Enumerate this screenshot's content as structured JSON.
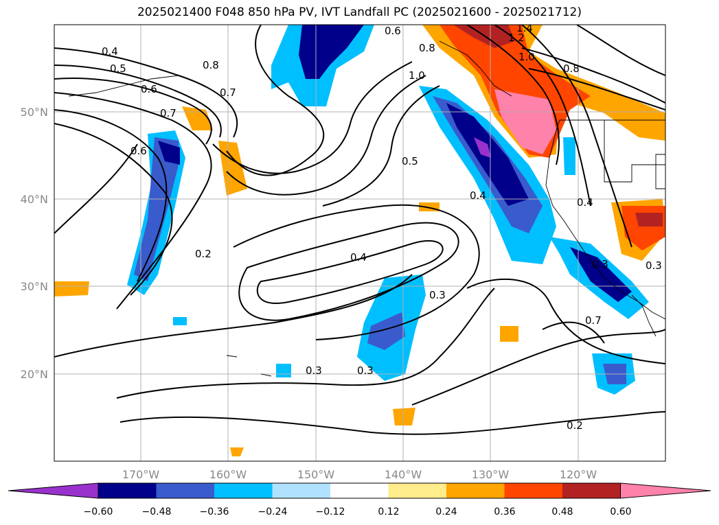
{
  "title": "2025021400 F048 850 hPa PV, IVT Landfall PC (2025021600 - 2025021712)",
  "lat_labels": [
    "50°N",
    "40°N",
    "30°N",
    "20°N"
  ],
  "lon_labels": [
    "170°W",
    "160°W",
    "150°W",
    "140°W",
    "130°W",
    "120°W"
  ],
  "contour_labels": [
    "0.4",
    "0.5",
    "0.6",
    "0.7",
    "0.8",
    "0.8",
    "1.0",
    "1.0",
    "1.2",
    "1.4",
    "0.6",
    "0.8",
    "0.7",
    "0.6",
    "0.5",
    "0.4",
    "0.2",
    "0.4",
    "0.3",
    "0.3",
    "0.3",
    "0.2",
    "0.4",
    "0.3",
    "0.7",
    "0.3"
  ],
  "colorbar": {
    "ticks": [
      "−0.60",
      "−0.48",
      "−0.36",
      "−0.24",
      "−0.12",
      "0.12",
      "0.24",
      "0.36",
      "0.48",
      "0.60"
    ],
    "colors": [
      "#9932cc",
      "#00008b",
      "#3a5bcc",
      "#00bfff",
      "#b0e2ff",
      "#ffffff",
      "#ffec8b",
      "#ffa500",
      "#ff4500",
      "#b22222",
      "#ff82ab"
    ]
  }
}
